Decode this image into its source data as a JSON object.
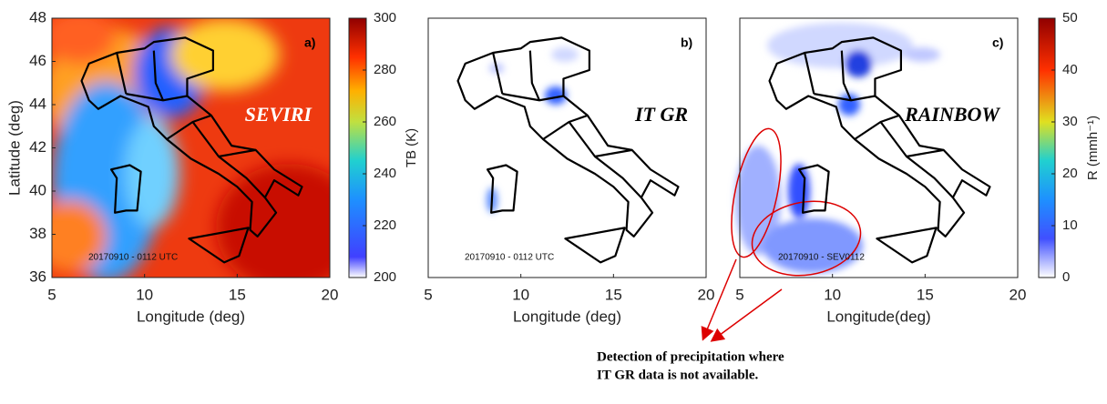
{
  "panels": [
    {
      "label": "a)",
      "overlay": "SEVIRI",
      "timestamp": "20170910 - 0112 UTC",
      "x_axis_label": "Longitude (deg)",
      "y_axis_label": "Latitude (deg)",
      "xlim": [
        5,
        20
      ],
      "ylim": [
        36,
        48
      ],
      "xticks": [
        5,
        10,
        15,
        20
      ],
      "yticks": [
        36,
        38,
        40,
        42,
        44,
        46,
        48
      ]
    },
    {
      "label": "b)",
      "overlay": "IT GR",
      "timestamp": "20170910 - 0112 UTC",
      "x_axis_label": "Longitude (deg)",
      "xlim": [
        5,
        20
      ],
      "xticks": [
        5,
        10,
        15,
        20
      ]
    },
    {
      "label": "c)",
      "overlay": "RAINBOW",
      "timestamp": "20170910 - SEV0112",
      "x_axis_label": "Longitude(deg)",
      "xlim": [
        5,
        20
      ],
      "xticks": [
        5,
        10,
        15,
        20
      ]
    }
  ],
  "colorbars": [
    {
      "label": "TB (K)",
      "lim": [
        200,
        300
      ],
      "ticks": [
        200,
        220,
        240,
        260,
        280,
        300
      ]
    },
    {
      "label": "R (mmh⁻¹)",
      "lim": [
        0,
        50
      ],
      "ticks": [
        0,
        10,
        20,
        30,
        40,
        50
      ]
    }
  ],
  "note": [
    "Detection of precipitation where",
    "IT GR data is not available."
  ]
}
